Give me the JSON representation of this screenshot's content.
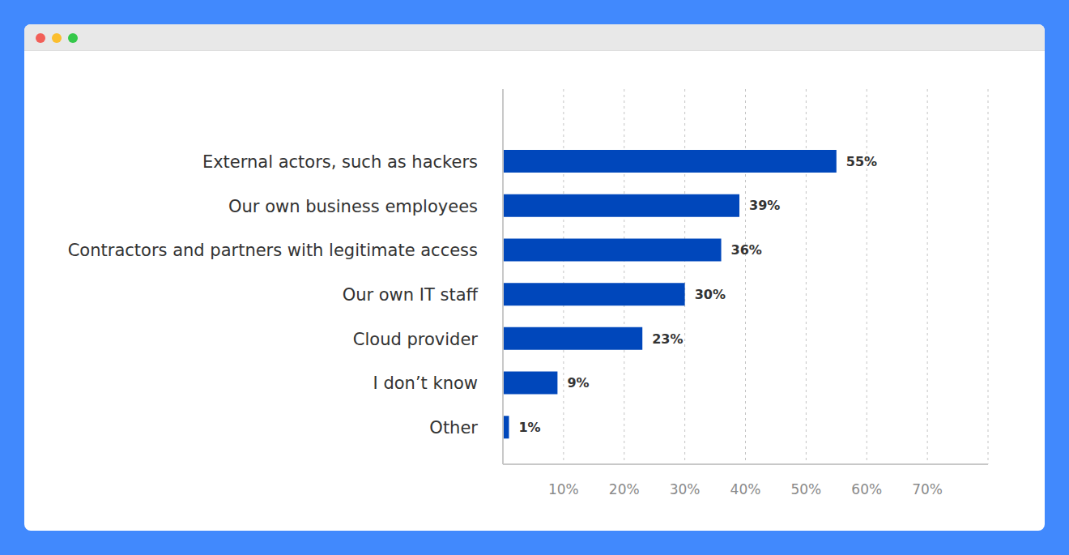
{
  "chart_data": {
    "type": "bar",
    "orientation": "horizontal",
    "categories": [
      "External actors, such as hackers",
      "Our own business employees",
      "Contractors and partners with legitimate access",
      "Our own IT staff",
      "Cloud provider",
      "I don’t know",
      "Other"
    ],
    "values": [
      55,
      39,
      36,
      30,
      23,
      9,
      1
    ],
    "value_labels": [
      "55%",
      "39%",
      "36%",
      "30%",
      "23%",
      "9%",
      "1%"
    ],
    "data_labels": true,
    "color": "#0047bb",
    "xlim": [
      0,
      80
    ],
    "xticks": [
      {
        "value": 10,
        "label": "10%"
      },
      {
        "value": 20,
        "label": "20%"
      },
      {
        "value": 30,
        "label": "30%"
      },
      {
        "value": 40,
        "label": "40%"
      },
      {
        "value": 50,
        "label": "50%"
      },
      {
        "value": 60,
        "label": "60%"
      },
      {
        "value": 70,
        "label": "70%"
      }
    ],
    "grid": true
  }
}
